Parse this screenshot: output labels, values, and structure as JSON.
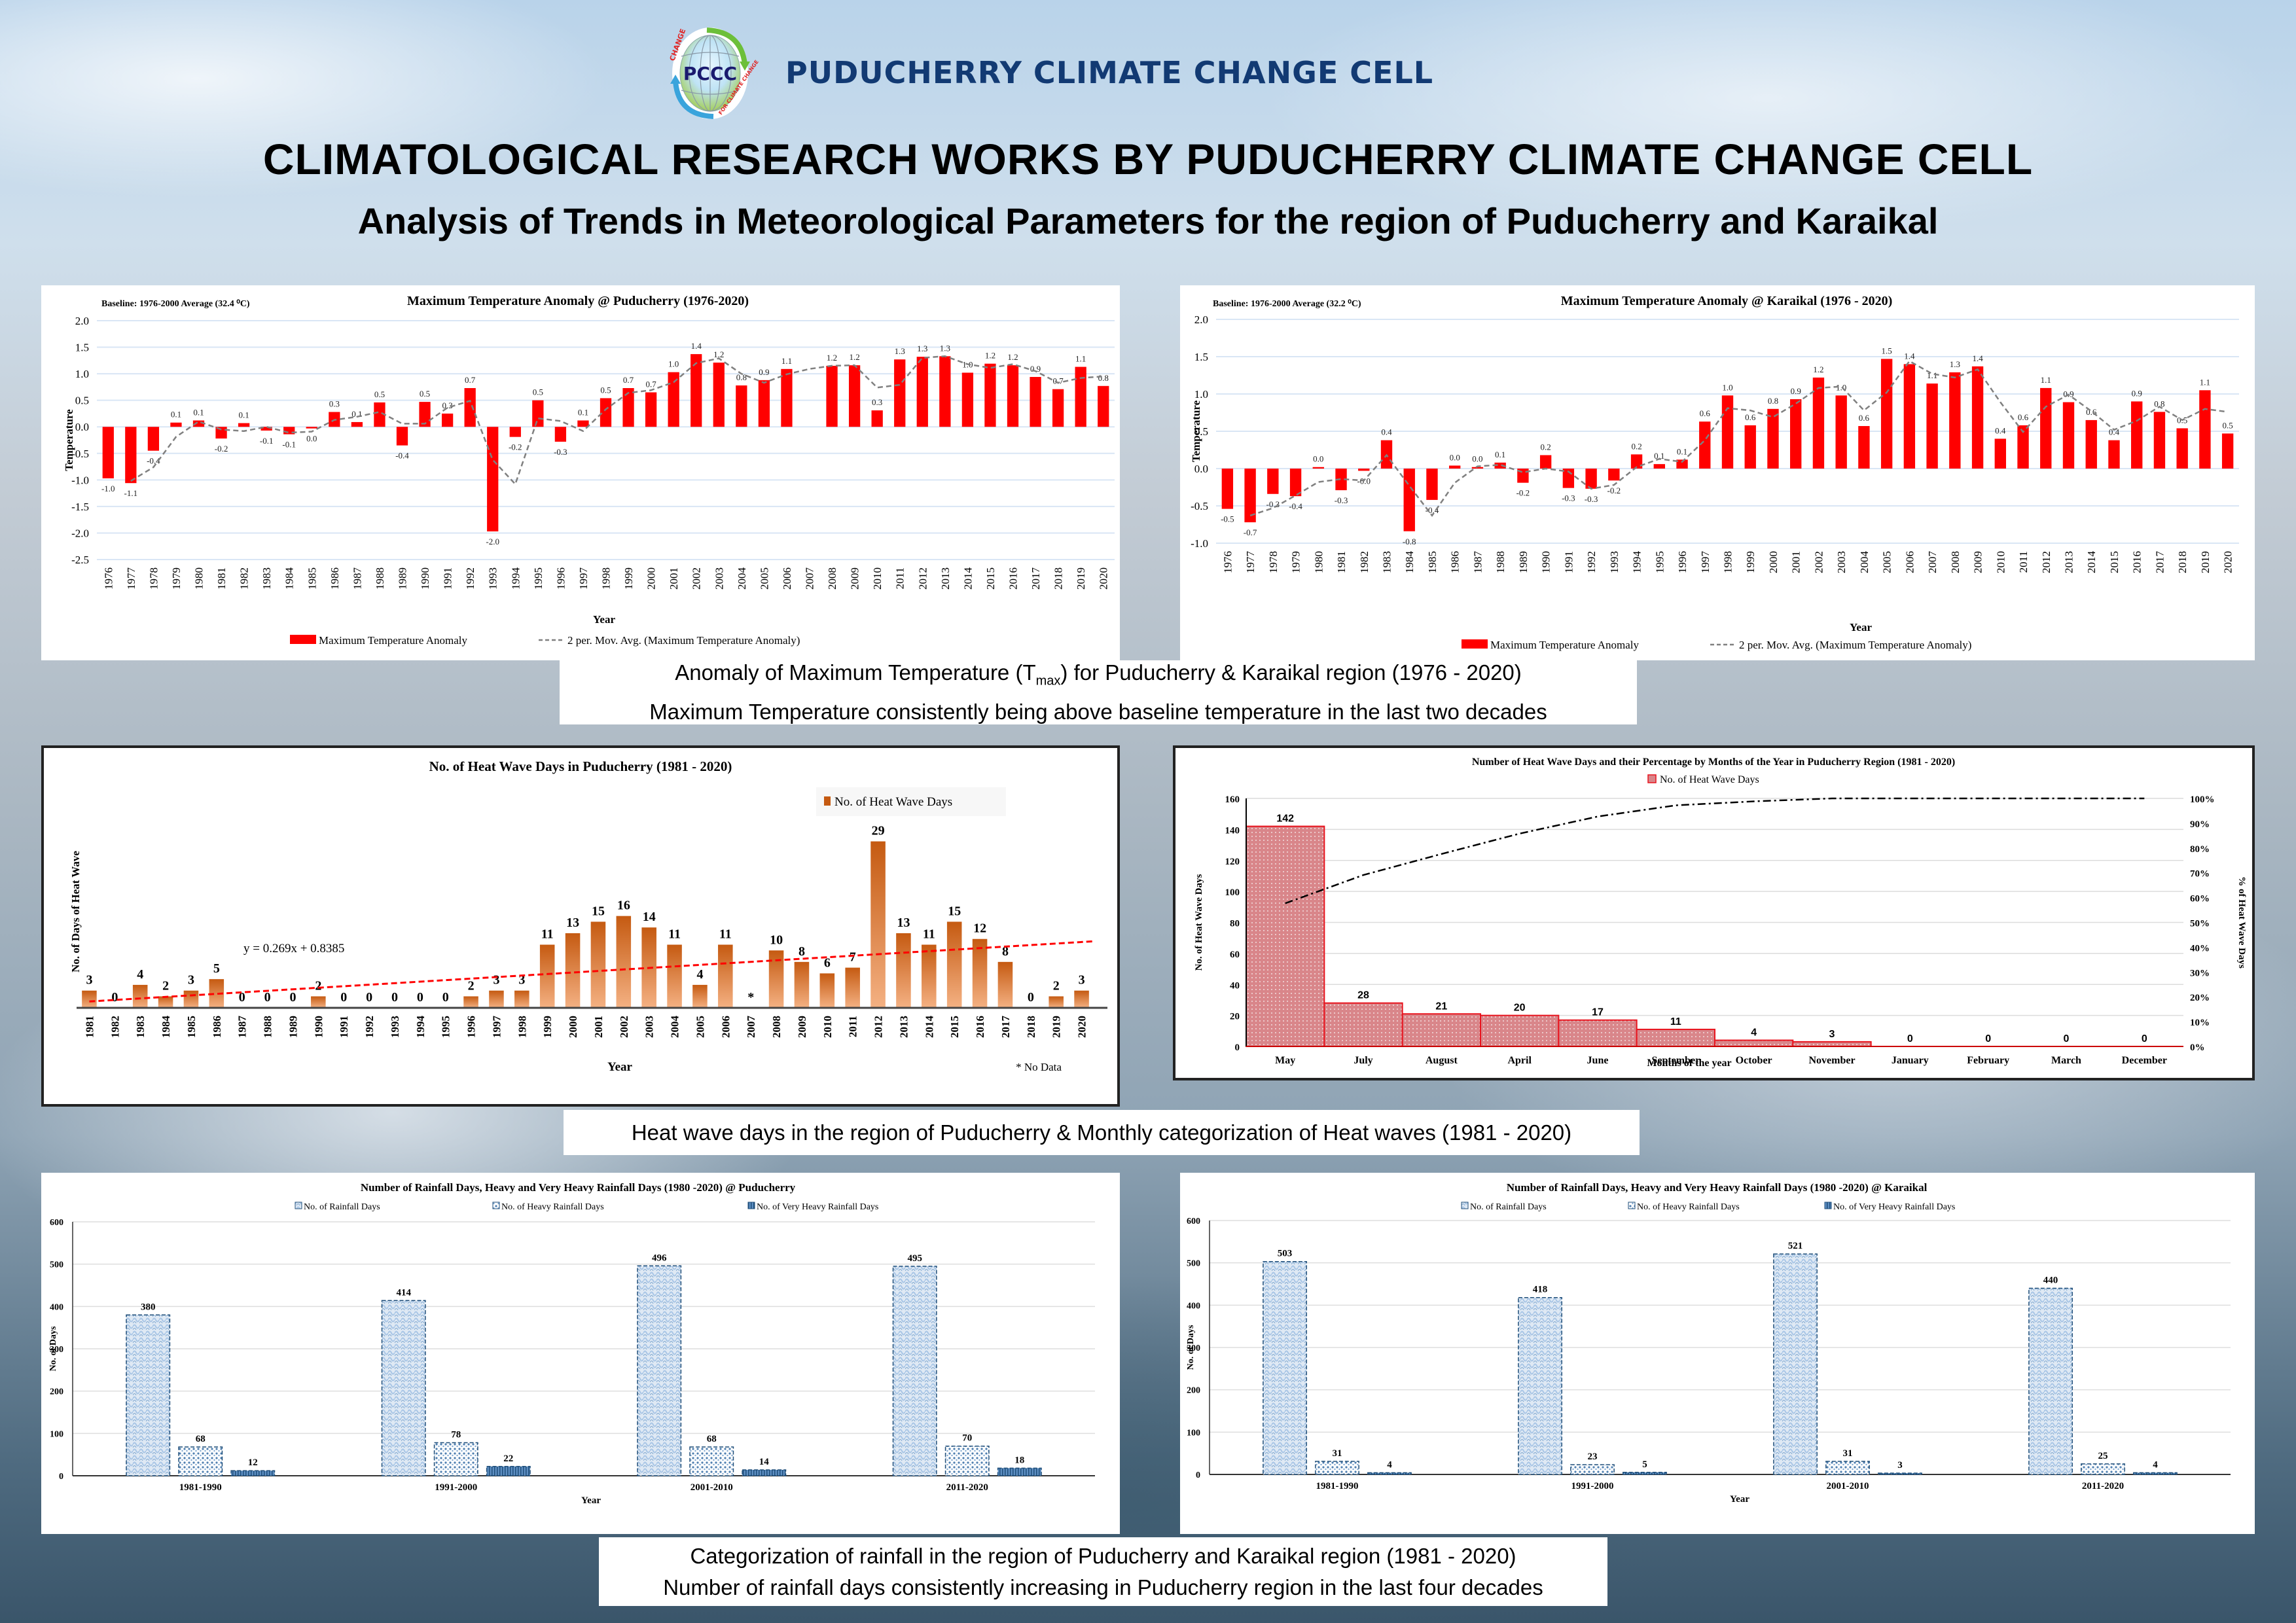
{
  "header": {
    "logo_text": "PCCC",
    "logo_ring_text_top": "CHANGE",
    "logo_ring_text_bottom": "FOR CLIMATE CHANGE",
    "brand": "PUDUCHERRY CLIMATE CHANGE CELL",
    "title": "CLIMATOLOGICAL RESEARCH WORKS BY PUDUCHERRY CLIMATE CHANGE CELL",
    "subtitle": "Analysis of Trends in Meteorological Parameters for the region of Puducherry and Karaikal"
  },
  "captions": {
    "temperature_line1_pre": "Anomaly of Maximum Temperature (T",
    "temperature_line1_sub": "max",
    "temperature_line1_post": ") for Puducherry & Karaikal region (1976 - 2020)",
    "temperature_line2": "Maximum Temperature consistently being above baseline temperature in the last two decades",
    "heatwave_line1": "Heat wave days in the region of Puducherry & Monthly categorization of Heat waves (1981 - 2020)",
    "rainfall_line1": "Categorization of rainfall in the region of Puducherry and Karaikal region (1981 - 2020)",
    "rainfall_line2": "Number of rainfall days consistently increasing in Puducherry region in the last four decades"
  },
  "colors": {
    "anomaly_bar": "#ff0000",
    "moving_avg": "#808080",
    "heatwave_bar_top": "#c55a11",
    "heatwave_bar_bottom": "#f4b183",
    "trendline": "#ff0000",
    "monthly_bar_fill": "#d9868a",
    "monthly_bar_edge": "#e8141e",
    "rain_light": "#a9c6e6",
    "rain_dark": "#1f4e79",
    "brand": "#123a73"
  },
  "chart_data": [
    {
      "id": "tmax_puducherry",
      "type": "bar",
      "title": "Maximum Temperature Anomaly @ Puducherry (1976-2020)",
      "note": "Baseline: 1976-2000 Average (32.4 ⁰C)",
      "xlabel": "Year",
      "ylabel": "Temperature",
      "ylim": [
        -2.5,
        2.0
      ],
      "yticks": [
        "2.0",
        "1.5",
        "1.0",
        "0.5",
        "0.0",
        "-0.5",
        "-1.0",
        "-1.5",
        "-2.0",
        "-2.5"
      ],
      "categories": [
        "1976",
        "1977",
        "1978",
        "1979",
        "1980",
        "1981",
        "1982",
        "1983",
        "1984",
        "1985",
        "1986",
        "1987",
        "1988",
        "1989",
        "1990",
        "1991",
        "1992",
        "1993",
        "1994",
        "1995",
        "1996",
        "1997",
        "1998",
        "1999",
        "2000",
        "2001",
        "2002",
        "2003",
        "2004",
        "2005",
        "2006",
        "2007",
        "2008",
        "2009",
        "2010",
        "2011",
        "2012",
        "2013",
        "2014",
        "2015",
        "2016",
        "2017",
        "2018",
        "2019",
        "2020"
      ],
      "values": [
        -0.97,
        -1.06,
        -0.45,
        0.08,
        0.12,
        -0.22,
        0.07,
        -0.07,
        -0.14,
        -0.03,
        0.28,
        0.09,
        0.46,
        -0.35,
        0.47,
        0.25,
        0.73,
        -1.97,
        -0.19,
        0.5,
        -0.28,
        0.12,
        0.54,
        0.73,
        0.65,
        1.03,
        1.37,
        1.21,
        0.78,
        0.88,
        1.09,
        null,
        1.15,
        1.16,
        0.31,
        1.27,
        1.32,
        1.33,
        1.02,
        1.19,
        1.16,
        0.94,
        0.71,
        1.13,
        0.77
      ],
      "labels": [
        "-1.0",
        "-1.1",
        "-0.4",
        "0.1",
        "0.1",
        "-0.2",
        "0.1",
        "-0.1",
        "-0.1",
        "0.0",
        "0.3",
        "0.1",
        "0.5",
        "-0.4",
        "0.5",
        "0.3",
        "0.7",
        "-2.0",
        "-0.2",
        "0.5",
        "-0.3",
        "0.1",
        "0.5",
        "0.7",
        "0.7",
        "1.0",
        "1.4",
        "1.2",
        "0.8",
        "0.9",
        "1.1",
        "",
        "1.2",
        "1.2",
        "0.3",
        "1.3",
        "1.3",
        "1.3",
        "1.0",
        "1.2",
        "1.2",
        "0.9",
        "0.7",
        "1.1",
        "0.8"
      ],
      "moving_avg": [
        null,
        -1.02,
        -0.76,
        -0.19,
        0.1,
        -0.05,
        -0.08,
        0.0,
        -0.11,
        -0.09,
        0.13,
        0.19,
        0.28,
        0.06,
        0.06,
        0.36,
        0.49,
        -0.62,
        -1.08,
        0.16,
        0.11,
        -0.08,
        0.33,
        0.64,
        0.69,
        0.84,
        1.2,
        1.29,
        1.0,
        0.83,
        0.99,
        1.09,
        1.15,
        1.16,
        0.74,
        0.79,
        1.3,
        1.33,
        1.18,
        1.11,
        1.18,
        1.05,
        0.83,
        0.92,
        0.95
      ],
      "legend": [
        "Maximum Temperature Anomaly",
        "2 per. Mov. Avg. (Maximum Temperature Anomaly)"
      ]
    },
    {
      "id": "tmax_karaikal",
      "type": "bar",
      "title": "Maximum Temperature Anomaly @ Karaikal (1976 - 2020)",
      "note": "Baseline: 1976-2000 Average (32.2 ⁰C)",
      "xlabel": "Year",
      "ylabel": "Temperature",
      "ylim": [
        -1.0,
        2.0
      ],
      "yticks": [
        "2.0",
        "1.5",
        "1.0",
        "0.5",
        "0.0",
        "-0.5",
        "-1.0"
      ],
      "categories": [
        "1976",
        "1977",
        "1978",
        "1979",
        "1980",
        "1981",
        "1982",
        "1983",
        "1984",
        "1985",
        "1986",
        "1987",
        "1988",
        "1989",
        "1990",
        "1991",
        "1992",
        "1993",
        "1994",
        "1995",
        "1996",
        "1997",
        "1998",
        "1999",
        "2000",
        "2001",
        "2002",
        "2003",
        "2004",
        "2005",
        "2006",
        "2007",
        "2008",
        "2009",
        "2010",
        "2011",
        "2012",
        "2013",
        "2014",
        "2015",
        "2016",
        "2017",
        "2018",
        "2019",
        "2020"
      ],
      "values": [
        -0.54,
        -0.72,
        -0.34,
        -0.37,
        0.02,
        -0.29,
        -0.03,
        0.38,
        -0.84,
        -0.42,
        0.04,
        0.02,
        0.08,
        -0.19,
        0.18,
        -0.26,
        -0.27,
        -0.16,
        0.19,
        0.06,
        0.12,
        0.63,
        0.98,
        0.58,
        0.8,
        0.93,
        1.22,
        0.98,
        0.57,
        1.47,
        1.4,
        1.14,
        1.29,
        1.37,
        0.4,
        0.58,
        1.08,
        0.89,
        0.65,
        0.38,
        0.9,
        0.76,
        0.54,
        1.05,
        0.47
      ],
      "labels": [
        "-0.5",
        "-0.7",
        "-0.3",
        "-0.4",
        "0.0",
        "-0.3",
        "-0.0",
        "0.4",
        "-0.8",
        "-0.4",
        "0.0",
        "0.0",
        "0.1",
        "-0.2",
        "0.2",
        "-0.3",
        "-0.3",
        "-0.2",
        "0.2",
        "0.1",
        "0.1",
        "0.6",
        "1.0",
        "0.6",
        "0.8",
        "0.9",
        "1.2",
        "1.0",
        "0.6",
        "1.5",
        "1.4",
        "1.1",
        "1.3",
        "1.4",
        "0.4",
        "0.6",
        "1.1",
        "0.9",
        "0.6",
        "0.4",
        "0.9",
        "0.8",
        "0.5",
        "1.1",
        "0.5"
      ],
      "moving_avg": [
        null,
        -0.63,
        -0.53,
        -0.36,
        -0.18,
        -0.14,
        -0.16,
        0.18,
        -0.23,
        -0.63,
        -0.19,
        0.03,
        0.05,
        -0.05,
        0.0,
        -0.04,
        -0.27,
        -0.22,
        0.02,
        0.13,
        0.09,
        0.38,
        0.81,
        0.78,
        0.69,
        0.87,
        1.08,
        1.1,
        0.78,
        1.02,
        1.44,
        1.27,
        1.22,
        1.33,
        0.89,
        0.49,
        0.83,
        0.99,
        0.77,
        0.52,
        0.64,
        0.83,
        0.65,
        0.8,
        0.76
      ],
      "legend": [
        "Maximum Temperature Anomaly",
        "2 per. Mov. Avg. (Maximum Temperature Anomaly)"
      ]
    },
    {
      "id": "heatwave_yearly",
      "type": "bar",
      "title": "No. of Heat Wave Days in Puducherry (1981 - 2020)",
      "xlabel": "Year",
      "ylabel": "No. of Days of Heat Wave",
      "ylim": [
        0,
        35
      ],
      "categories": [
        "1981",
        "1982",
        "1983",
        "1984",
        "1985",
        "1986",
        "1987",
        "1988",
        "1989",
        "1990",
        "1991",
        "1992",
        "1993",
        "1994",
        "1995",
        "1996",
        "1997",
        "1998",
        "1999",
        "2000",
        "2001",
        "2002",
        "2003",
        "2004",
        "2005",
        "2006",
        "2007",
        "2008",
        "2009",
        "2010",
        "2011",
        "2012",
        "2013",
        "2014",
        "2015",
        "2016",
        "2017",
        "2018",
        "2019",
        "2020"
      ],
      "values": [
        3,
        0,
        4,
        2,
        3,
        5,
        0,
        0,
        0,
        2,
        0,
        0,
        0,
        0,
        0,
        2,
        3,
        3,
        11,
        13,
        15,
        16,
        14,
        11,
        4,
        11,
        null,
        10,
        8,
        6,
        7,
        29,
        13,
        11,
        15,
        12,
        8,
        0,
        2,
        3
      ],
      "labels": [
        "3",
        "0",
        "4",
        "2",
        "3",
        "5",
        "0",
        "0",
        "0",
        "2",
        "0",
        "0",
        "0",
        "0",
        "0",
        "2",
        "3",
        "3",
        "11",
        "13",
        "15",
        "16",
        "14",
        "11",
        "4",
        "11",
        "*",
        "10",
        "8",
        "6",
        "7",
        "29",
        "13",
        "11",
        "15",
        "12",
        "8",
        "0",
        "2",
        "3"
      ],
      "trendline": {
        "equation": "y = 0.269x + 0.8385",
        "slope": 0.269,
        "intercept": 0.8385
      },
      "legend": [
        "No. of Heat Wave Days"
      ],
      "footnote": "* No Data"
    },
    {
      "id": "heatwave_monthly",
      "type": "bar",
      "title": "Number of Heat Wave Days and their Percentage by Months of the Year in Puducherry Region (1981 - 2020)",
      "xlabel": "Months of the year",
      "ylabel": "No. of Heat Wave Days",
      "ylabel_right": "% of Heat Wave Days",
      "ylim": [
        0,
        160
      ],
      "yticks": [
        "160",
        "140",
        "120",
        "100",
        "80",
        "60",
        "40",
        "20",
        "0"
      ],
      "yticks_right": [
        "100%",
        "90%",
        "80%",
        "70%",
        "60%",
        "50%",
        "40%",
        "30%",
        "20%",
        "10%",
        "0%"
      ],
      "categories": [
        "May",
        "July",
        "August",
        "April",
        "June",
        "September",
        "October",
        "November",
        "January",
        "February",
        "March",
        "December"
      ],
      "values": [
        142,
        28,
        21,
        20,
        17,
        11,
        4,
        3,
        0,
        0,
        0,
        0
      ],
      "cumulative_percent": [
        57.7,
        69.1,
        77.6,
        85.8,
        92.7,
        97.2,
        98.8,
        100,
        100,
        100,
        100,
        100
      ],
      "legend": [
        "No. of Heat Wave Days"
      ]
    },
    {
      "id": "rainfall_puducherry",
      "type": "bar",
      "title": "Number of Rainfall Days, Heavy and Very Heavy Rainfall Days (1980 -2020) @ Puducherry",
      "xlabel": "Year",
      "ylabel": "No. of Days",
      "ylim": [
        0,
        600
      ],
      "yticks": [
        "600",
        "500",
        "400",
        "300",
        "200",
        "100",
        "0"
      ],
      "categories": [
        "1981-1990",
        "1991-2000",
        "2001-2010",
        "2011-2020"
      ],
      "series": [
        {
          "name": "No. of Rainfall Days",
          "values": [
            380,
            414,
            496,
            495
          ]
        },
        {
          "name": "No. of Heavy Rainfall Days",
          "values": [
            68,
            78,
            68,
            70
          ]
        },
        {
          "name": "No. of Very Heavy Rainfall Days",
          "values": [
            12,
            22,
            14,
            18
          ]
        }
      ]
    },
    {
      "id": "rainfall_karaikal",
      "type": "bar",
      "title": "Number of Rainfall Days, Heavy and Very Heavy Rainfall Days (1980 -2020) @ Karaikal",
      "xlabel": "Year",
      "ylabel": "No. of Days",
      "ylim": [
        0,
        600
      ],
      "yticks": [
        "600",
        "500",
        "400",
        "300",
        "200",
        "100",
        "0"
      ],
      "categories": [
        "1981-1990",
        "1991-2000",
        "2001-2010",
        "2011-2020"
      ],
      "series": [
        {
          "name": "No. of Rainfall Days",
          "values": [
            503,
            418,
            521,
            440
          ]
        },
        {
          "name": "No. of Heavy Rainfall Days",
          "values": [
            31,
            23,
            31,
            25
          ]
        },
        {
          "name": "No. of Very Heavy Rainfall Days",
          "values": [
            4,
            5,
            3,
            4
          ]
        }
      ]
    }
  ]
}
